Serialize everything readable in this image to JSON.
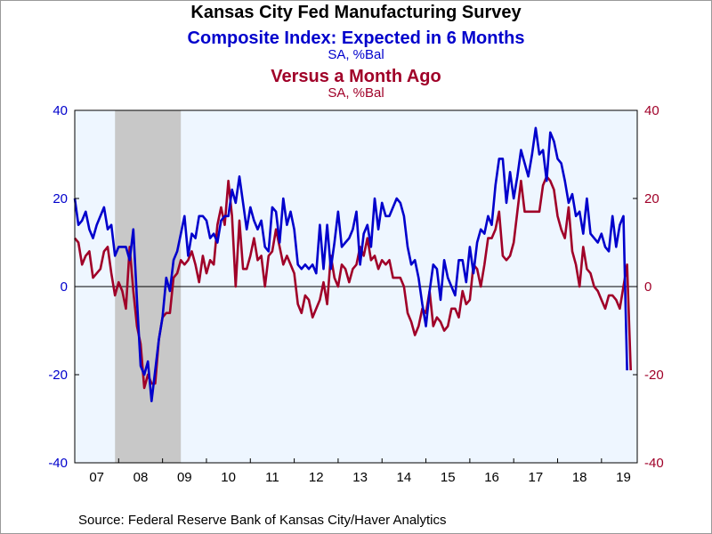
{
  "titles": {
    "main": "Kansas City Fed Manufacturing Survey",
    "series1_title": "Composite Index: Expected in 6 Months",
    "series1_units": "SA, %Bal",
    "series2_title": "Versus a Month Ago",
    "series2_units": "SA, %Bal"
  },
  "source": "Source:  Federal Reserve Bank of Kansas City/Haver Analytics",
  "colors": {
    "series1": "#0000cc",
    "series2": "#a00028",
    "plot_background": "#eef6ff",
    "recession": "#c8c8c8"
  },
  "chart_data": {
    "type": "line",
    "x_start": "2007-01",
    "frequency": "monthly",
    "x_tick_labels": [
      "07",
      "08",
      "09",
      "10",
      "11",
      "12",
      "13",
      "14",
      "15",
      "16",
      "17",
      "18",
      "19"
    ],
    "ylim": [
      -40,
      40
    ],
    "left_axis_ticks": [
      "40",
      "20",
      "0",
      "-20",
      "-40"
    ],
    "right_axis_ticks": [
      "40",
      "20",
      "0",
      "-20",
      "-40"
    ],
    "zero_line": true,
    "grid": false,
    "recession_shading": [
      "2007-12",
      "2009-06"
    ],
    "series": [
      {
        "name": "Composite Index: Expected in 6 Months",
        "axis": "left",
        "values": [
          20,
          14,
          15,
          17,
          13,
          11,
          14,
          16,
          18,
          13,
          14,
          7,
          9,
          9,
          9,
          6,
          13,
          -3,
          -18,
          -20,
          -17,
          -26,
          -19,
          -12,
          -7,
          2,
          -1,
          6,
          8,
          12,
          16,
          7,
          12,
          11,
          16,
          16,
          15,
          11,
          12,
          10,
          15,
          16,
          16,
          22,
          19,
          25,
          19,
          13,
          18,
          15,
          13,
          15,
          9,
          8,
          18,
          17,
          10,
          20,
          14,
          17,
          13,
          5,
          4,
          5,
          4,
          5,
          3,
          14,
          4,
          14,
          4,
          10,
          17,
          9,
          10,
          11,
          13,
          17,
          5,
          12,
          14,
          9,
          20,
          13,
          19,
          16,
          16,
          18,
          20,
          19,
          16,
          9,
          5,
          6,
          2,
          -4,
          -9,
          -1,
          5,
          4,
          -3,
          6,
          2,
          0,
          -2,
          6,
          6,
          1,
          9,
          3,
          10,
          13,
          12,
          16,
          14,
          23,
          29,
          29,
          19,
          26,
          20,
          25,
          31,
          28,
          25,
          30,
          36,
          30,
          31,
          24,
          35,
          33,
          29,
          28,
          24,
          19,
          21,
          16,
          17,
          12,
          20,
          12,
          11,
          10,
          12,
          9,
          8,
          16,
          9,
          14,
          16,
          -19
        ]
      },
      {
        "name": "Versus a Month Ago",
        "axis": "right",
        "values": [
          11,
          10,
          5,
          7,
          8,
          2,
          3,
          4,
          8,
          9,
          3,
          -2,
          1,
          -1,
          -5,
          9,
          -1,
          -9,
          -13,
          -23,
          -20,
          -22,
          -22,
          -12,
          -7,
          -6,
          -6,
          2,
          3,
          6,
          5,
          6,
          8,
          5,
          1,
          7,
          3,
          6,
          5,
          14,
          18,
          14,
          24,
          16,
          0,
          15,
          4,
          4,
          7,
          11,
          6,
          7,
          0,
          7,
          8,
          13,
          9,
          5,
          7,
          5,
          3,
          -4,
          -6,
          -2,
          -3,
          -7,
          -5,
          -3,
          1,
          -4,
          7,
          2,
          0,
          5,
          4,
          1,
          4,
          5,
          9,
          7,
          11,
          6,
          7,
          4,
          6,
          5,
          6,
          2,
          2,
          2,
          0,
          -6,
          -8,
          -11,
          -9,
          -5,
          -6,
          -1,
          -9,
          -7,
          -8,
          -10,
          -9,
          -5,
          -5,
          -7,
          -1,
          -4,
          -3,
          5,
          4,
          0,
          5,
          11,
          11,
          13,
          17,
          7,
          6,
          7,
          10,
          17,
          24,
          17,
          17,
          17,
          17,
          17,
          23,
          25,
          24,
          22,
          16,
          13,
          11,
          18,
          8,
          5,
          0,
          9,
          4,
          3,
          0,
          -1,
          -3,
          -5,
          -2,
          -2,
          -3,
          -5,
          0,
          5,
          -19
        ]
      }
    ]
  }
}
